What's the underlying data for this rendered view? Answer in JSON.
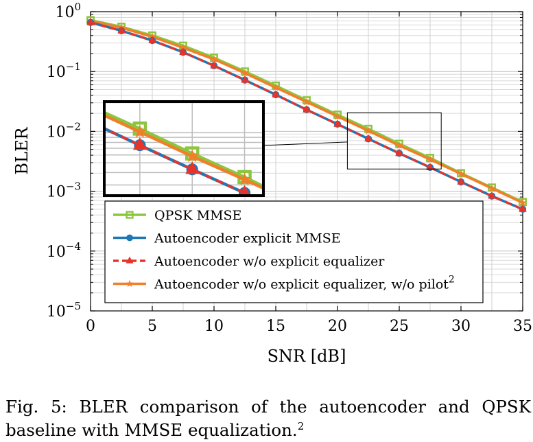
{
  "chart_data": {
    "type": "line",
    "y_scale": "log",
    "xlabel": "SNR [dB]",
    "ylabel": "BLER",
    "xlim": [
      0,
      35
    ],
    "ylim": [
      1e-05,
      1
    ],
    "xticks": [
      0,
      5,
      10,
      15,
      20,
      25,
      30,
      35
    ],
    "yticks": [
      {
        "value": 1,
        "base": "10",
        "exp": "0"
      },
      {
        "value": 0.1,
        "base": "10",
        "exp": "−1"
      },
      {
        "value": 0.01,
        "base": "10",
        "exp": "−2"
      },
      {
        "value": 0.001,
        "base": "10",
        "exp": "−3"
      },
      {
        "value": 0.0001,
        "base": "10",
        "exp": "−4"
      },
      {
        "value": 1e-05,
        "base": "10",
        "exp": "−5"
      }
    ],
    "grid": true,
    "legend_position": "lower-left",
    "x": [
      0,
      2.5,
      5,
      7.5,
      10,
      12.5,
      15,
      17.5,
      20,
      22.5,
      25,
      27.5,
      30,
      32.5,
      35
    ],
    "series": [
      {
        "name": "QPSK MMSE",
        "legend_label": "QPSK MMSE",
        "legend_sup": "",
        "color": "#8cc63f",
        "marker": "square",
        "dashed": false,
        "values": [
          0.72,
          0.56,
          0.4,
          0.27,
          0.17,
          0.1,
          0.058,
          0.033,
          0.019,
          0.011,
          0.0062,
          0.0036,
          0.002,
          0.00115,
          0.00066
        ]
      },
      {
        "name": "Autoencoder explicit MMSE",
        "legend_label": "Autoencoder explicit MMSE",
        "legend_sup": "",
        "color": "#1f77b4",
        "marker": "circle",
        "dashed": false,
        "values": [
          0.66,
          0.48,
          0.33,
          0.21,
          0.125,
          0.072,
          0.041,
          0.023,
          0.0132,
          0.0075,
          0.0043,
          0.0025,
          0.00143,
          0.00083,
          0.0005
        ]
      },
      {
        "name": "Autoencoder w/o explicit equalizer",
        "legend_label": "Autoencoder w/o explicit equalizer",
        "legend_sup": "",
        "color": "#e8332a",
        "marker": "triangle",
        "dashed": true,
        "values": [
          0.66,
          0.48,
          0.33,
          0.21,
          0.125,
          0.072,
          0.041,
          0.023,
          0.0132,
          0.0075,
          0.0043,
          0.0025,
          0.00143,
          0.00083,
          0.0005
        ]
      },
      {
        "name": "Autoencoder w/o explicit equalizer, w/o pilot",
        "legend_label": "Autoencoder w/o explicit equalizer, w/o pilot",
        "legend_sup": "2",
        "color": "#f07f2a",
        "marker": "star",
        "dashed": false,
        "values": [
          0.7,
          0.54,
          0.38,
          0.25,
          0.16,
          0.094,
          0.054,
          0.031,
          0.0178,
          0.0102,
          0.0058,
          0.0034,
          0.00195,
          0.00112,
          0.00064
        ]
      }
    ],
    "inset": {
      "xlim": [
        20.8,
        28.4
      ],
      "ylim": [
        0.00235,
        0.0205
      ]
    }
  },
  "caption": {
    "text": "Fig. 5: BLER comparison of the autoencoder and QPSK baseline with MMSE equalization.",
    "sup": "2"
  }
}
